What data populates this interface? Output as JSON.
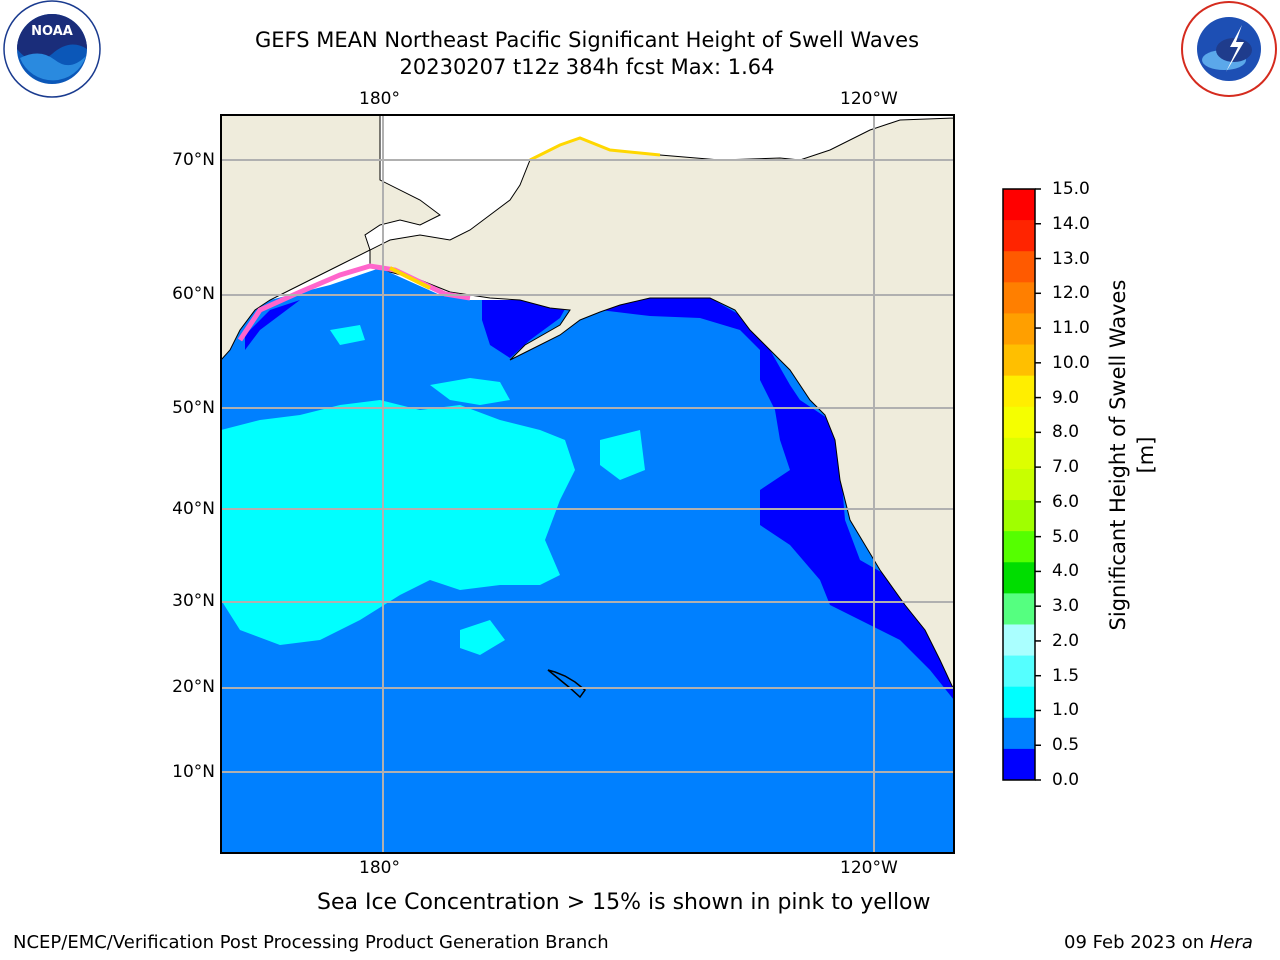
{
  "title": {
    "line1": "GEFS MEAN Northeast Pacific Significant Height of Swell Waves",
    "line2": "20230207 t12z 384h fcst   Max: 1.64"
  },
  "logos": {
    "left": "noaa-logo",
    "right": "national-weather-service-logo"
  },
  "map": {
    "lon_labels_top": [
      "180°",
      "120°W"
    ],
    "lon_labels_bottom": [
      "180°",
      "120°W"
    ],
    "lat_labels": [
      "70°N",
      "60°N",
      "50°N",
      "40°N",
      "30°N",
      "20°N",
      "10°N"
    ],
    "colors": {
      "land": "#efecdc",
      "ocean_0_5_1_0": "#0080ff",
      "ocean_0_0_5": "#0000ff",
      "swell_1_0_1_5": "#00ffff",
      "ice_pink": "#ff66cc",
      "ice_yellow": "#ffd700"
    }
  },
  "colorbar": {
    "label": "Significant Height of Swell Waves [m]",
    "ticks": [
      "15.0",
      "14.0",
      "13.0",
      "12.0",
      "11.0",
      "10.0",
      "9.0",
      "8.0",
      "7.0",
      "6.0",
      "5.0",
      "4.0",
      "3.0",
      "2.0",
      "1.5",
      "1.0",
      "0.5",
      "0.0"
    ],
    "colors": [
      "#ff0000",
      "#ff2400",
      "#ff5a00",
      "#ff7f00",
      "#ff9f00",
      "#ffbf00",
      "#ffee00",
      "#f5ff00",
      "#ddff00",
      "#c8ff00",
      "#a0ff00",
      "#55ff00",
      "#00dd00",
      "#55ff80",
      "#aaffff",
      "#55ffff",
      "#00ffff",
      "#0080ff",
      "#0000ff"
    ]
  },
  "caption": "Sea Ice Concentration > 15% is shown in pink to yellow",
  "footer": {
    "left": "NCEP/EMC/Verification Post Processing Product Generation Branch",
    "right_prefix": "09 Feb 2023 on ",
    "right_machine": "Hera"
  }
}
